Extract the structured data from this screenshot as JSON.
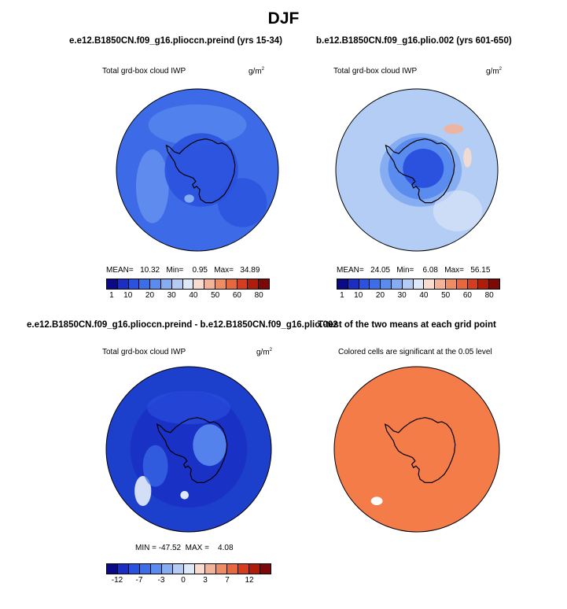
{
  "title": "DJF",
  "panels": [
    {
      "title": "e.e12.B1850CN.f09_g16.plioccn.preind (yrs 15-34)",
      "variable": "Total grd-box cloud IWP",
      "units": "g/m",
      "units_exp": "2",
      "stats": "MEAN=   10.32   Min=    0.95   Max=   34.89",
      "colorbar": {
        "ticks": [
          "1",
          "10",
          "20",
          "30",
          "40",
          "50",
          "60",
          "80"
        ],
        "colors": [
          "#0a0a87",
          "#1a2ec4",
          "#2a52de",
          "#3c6ee8",
          "#5a8cf0",
          "#86acf2",
          "#b4ccf4",
          "#dde8f8",
          "#f7dccf",
          "#f3b398",
          "#ee8c64",
          "#e8683e",
          "#d43e1e",
          "#b01c0a",
          "#7c0808"
        ]
      }
    },
    {
      "title": "b.e12.B1850CN.f09_g16.plio.002 (yrs 601-650)",
      "variable": "Total grd-box cloud IWP",
      "units": "g/m",
      "units_exp": "2",
      "stats": "MEAN=   24.05   Min=    6.08   Max=   56.15",
      "colorbar": {
        "ticks": [
          "1",
          "10",
          "20",
          "30",
          "40",
          "50",
          "60",
          "80"
        ],
        "colors": [
          "#0a0a87",
          "#1a2ec4",
          "#2a52de",
          "#3c6ee8",
          "#5a8cf0",
          "#86acf2",
          "#b4ccf4",
          "#dde8f8",
          "#f7dccf",
          "#f3b398",
          "#ee8c64",
          "#e8683e",
          "#d43e1e",
          "#b01c0a",
          "#7c0808"
        ]
      }
    },
    {
      "title": "e.e12.B1850CN.f09_g16.plioccn.preind - b.e12.B1850CN.f09_g16.plio.002",
      "variable": "Total grd-box cloud IWP",
      "units": "g/m",
      "units_exp": "2",
      "stats": "MIN = -47.52  MAX =    4.08",
      "colorbar": {
        "ticks": [
          "-12",
          "-7",
          "-3",
          "0",
          "3",
          "7",
          "12"
        ],
        "colors": [
          "#0a0a87",
          "#1a2ec4",
          "#2a52de",
          "#3c6ee8",
          "#5a8cf0",
          "#86acf2",
          "#b4ccf4",
          "#dde8f8",
          "#f7dccf",
          "#f3b398",
          "#ee8c64",
          "#e8683e",
          "#d43e1e",
          "#b01c0a",
          "#7c0808"
        ]
      }
    },
    {
      "title": "T-test of the two means at each grid point",
      "variable": "Colored cells are significant at the 0.05 level"
    }
  ],
  "colors": {
    "map1_base": "#3d6ae6",
    "map2_base": "#b3cdf4",
    "map3_base": "#1c3fcc",
    "map4_base": "#f47c48",
    "antarctica_dark": "#1a2ec4",
    "coast": "#000000"
  }
}
